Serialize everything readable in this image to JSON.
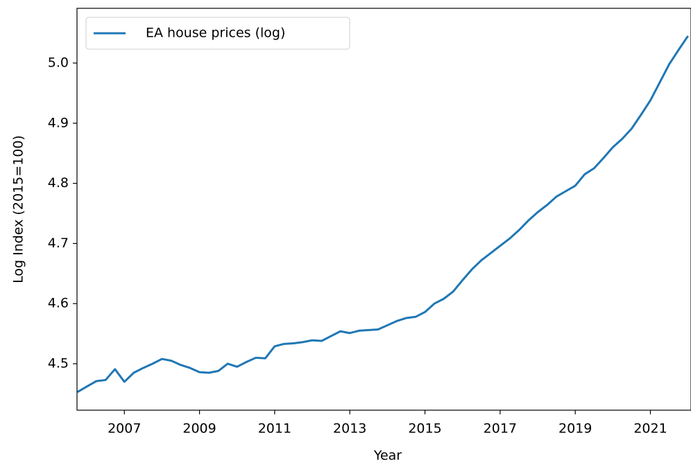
{
  "chart_data": {
    "type": "line",
    "xlabel": "Year",
    "ylabel": "Log Index (2015=100)",
    "x": [
      2005.75,
      2006.0,
      2006.25,
      2006.5,
      2006.75,
      2007.0,
      2007.25,
      2007.5,
      2007.75,
      2008.0,
      2008.25,
      2008.5,
      2008.75,
      2009.0,
      2009.25,
      2009.5,
      2009.75,
      2010.0,
      2010.25,
      2010.5,
      2010.75,
      2011.0,
      2011.25,
      2011.5,
      2011.75,
      2012.0,
      2012.25,
      2012.5,
      2012.75,
      2013.0,
      2013.25,
      2013.5,
      2013.75,
      2014.0,
      2014.25,
      2014.5,
      2014.75,
      2015.0,
      2015.25,
      2015.5,
      2015.75,
      2016.0,
      2016.25,
      2016.5,
      2016.75,
      2017.0,
      2017.25,
      2017.5,
      2017.75,
      2018.0,
      2018.25,
      2018.5,
      2018.75,
      2019.0,
      2019.25,
      2019.5,
      2019.75,
      2020.0,
      2020.25,
      2020.5,
      2020.75,
      2021.0,
      2021.25,
      2021.5,
      2021.75,
      2022.0
    ],
    "series": [
      {
        "name": "EA house prices (log)",
        "color": "#1f77b4",
        "values": [
          4.453,
          4.462,
          4.471,
          4.473,
          4.491,
          4.47,
          4.485,
          4.493,
          4.5,
          4.508,
          4.505,
          4.498,
          4.493,
          4.486,
          4.485,
          4.488,
          4.5,
          4.495,
          4.503,
          4.51,
          4.509,
          4.529,
          4.533,
          4.534,
          4.536,
          4.539,
          4.538,
          4.546,
          4.554,
          4.551,
          4.555,
          4.556,
          4.557,
          4.564,
          4.571,
          4.576,
          4.578,
          4.586,
          4.6,
          4.608,
          4.62,
          4.639,
          4.657,
          4.672,
          4.684,
          4.696,
          4.708,
          4.722,
          4.738,
          4.752,
          4.764,
          4.778,
          4.787,
          4.796,
          4.815,
          4.825,
          4.842,
          4.86,
          4.874,
          4.891,
          4.914,
          4.938,
          4.968,
          4.998,
          5.022,
          5.045
        ]
      }
    ],
    "xlim": [
      2005.74,
      2022.08
    ],
    "ylim": [
      4.4228,
      5.091
    ],
    "xticks": [
      2007,
      2009,
      2011,
      2013,
      2015,
      2017,
      2019,
      2021
    ],
    "yticks": [
      4.5,
      4.6,
      4.7,
      4.8,
      4.9,
      {
        "value": 5,
        "label": "5.0"
      }
    ],
    "grid": false,
    "legend": "upper left"
  }
}
